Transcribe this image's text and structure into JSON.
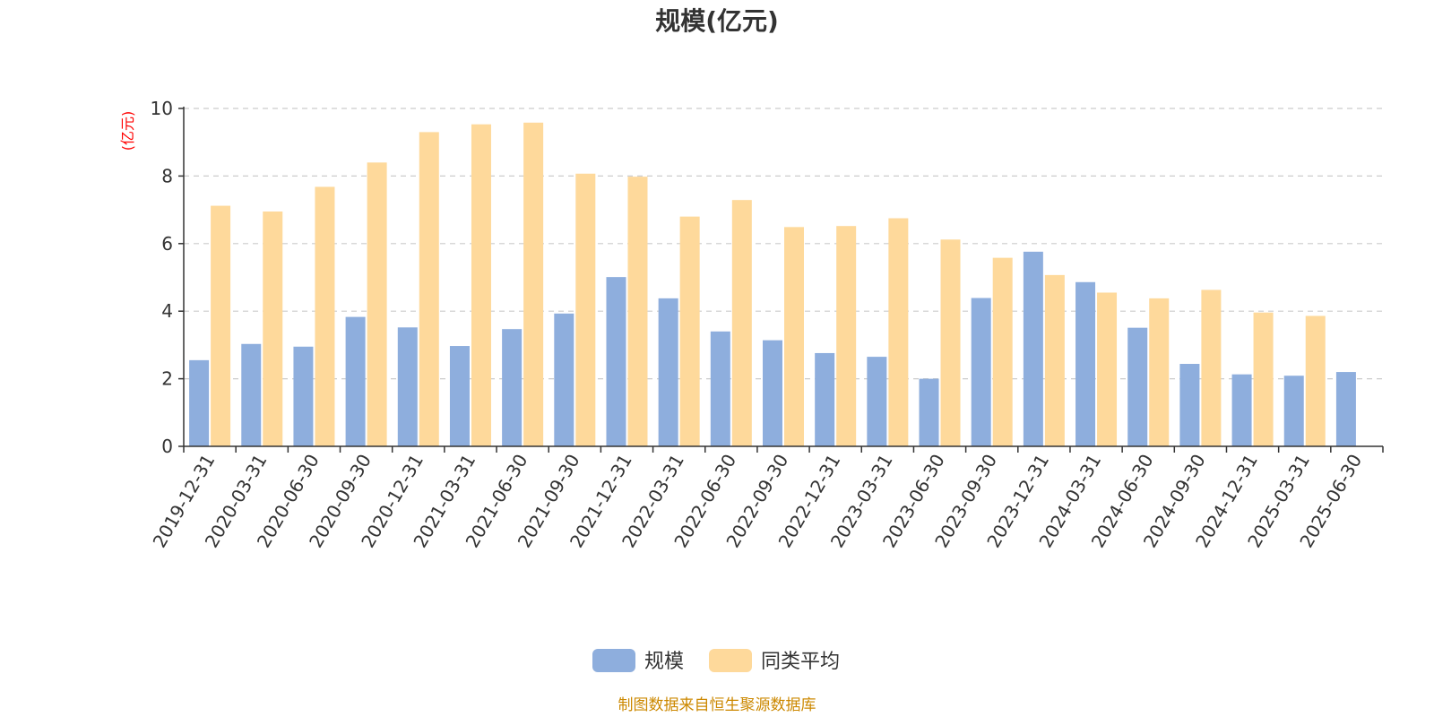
{
  "chart_data": {
    "type": "bar",
    "title": "规模(亿元)",
    "ylabel": "(亿元)",
    "ylim": [
      0,
      10
    ],
    "yticks": [
      0,
      2,
      4,
      6,
      8,
      10
    ],
    "grid": true,
    "legend_position": "bottom-center",
    "categories": [
      "2019-12-31",
      "2020-03-31",
      "2020-06-30",
      "2020-09-30",
      "2020-12-31",
      "2021-03-31",
      "2021-06-30",
      "2021-09-30",
      "2021-12-31",
      "2022-03-31",
      "2022-06-30",
      "2022-09-30",
      "2022-12-31",
      "2023-03-31",
      "2023-06-30",
      "2023-09-30",
      "2023-12-31",
      "2024-03-31",
      "2024-06-30",
      "2024-09-30",
      "2024-12-31",
      "2025-03-31",
      "2025-06-30"
    ],
    "series": [
      {
        "name": "规模",
        "color": "#8eaedd",
        "values": [
          2.55,
          3.03,
          2.95,
          3.83,
          3.52,
          2.97,
          3.47,
          3.93,
          5.01,
          4.38,
          3.4,
          3.14,
          2.76,
          2.65,
          2.0,
          4.39,
          5.76,
          4.86,
          3.51,
          2.44,
          2.13,
          2.09,
          2.2
        ]
      },
      {
        "name": "同类平均",
        "color": "#fed99b",
        "values": [
          7.12,
          6.95,
          7.68,
          8.4,
          9.3,
          9.53,
          9.58,
          8.07,
          7.98,
          6.8,
          7.29,
          6.49,
          6.52,
          6.75,
          6.12,
          5.58,
          5.07,
          4.55,
          4.38,
          4.63,
          3.96,
          3.86,
          null
        ]
      }
    ]
  },
  "source_text": "制图数据来自恒生聚源数据库",
  "colors": {
    "axis": "#333333",
    "grid": "#cccccc",
    "ylabel": "#ff0000",
    "source": "#cc8800"
  }
}
